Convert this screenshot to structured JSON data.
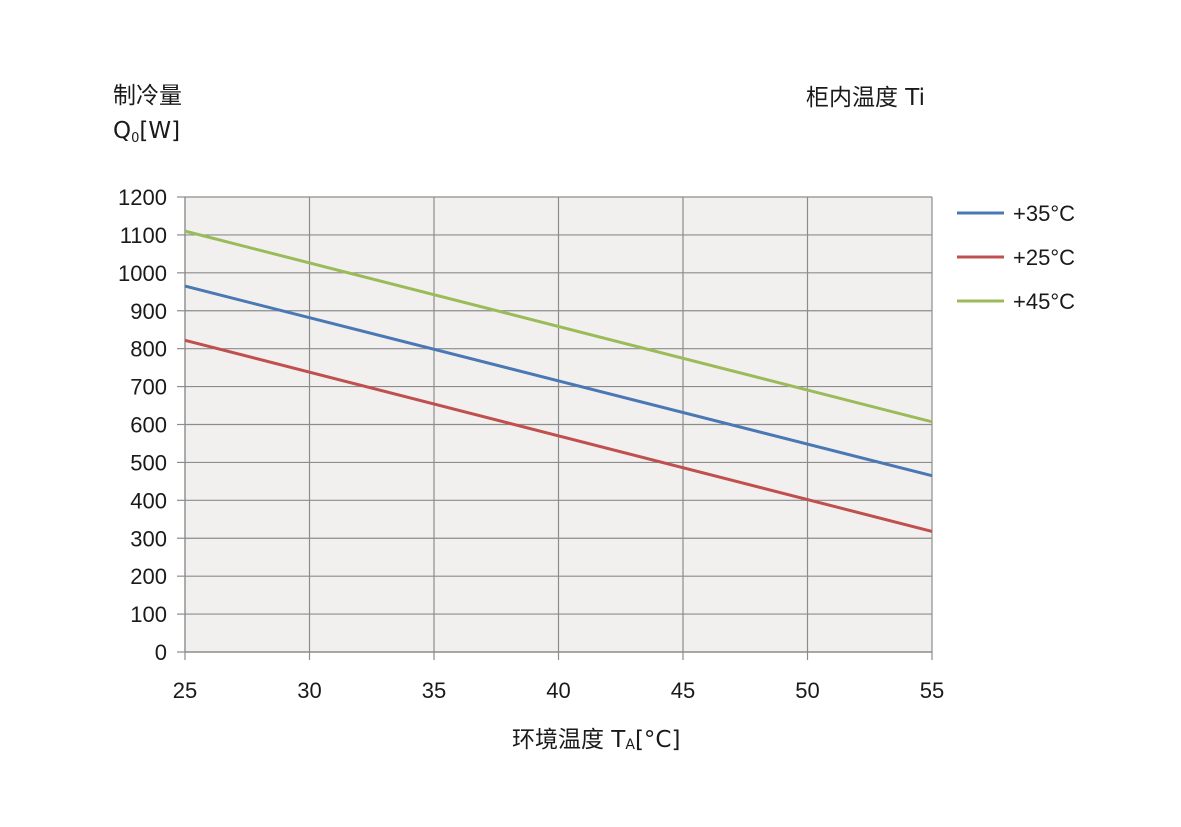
{
  "chart_data": {
    "type": "line",
    "ylabel_line1": "制冷量",
    "ylabel_q": "Q",
    "ylabel_sub": "0",
    "ylabel_unit": "[W]",
    "xlabel_main": "环境温度 T",
    "xlabel_sub": "A",
    "xlabel_unit": "[°C]",
    "legend_title": "柜内温度 Ti",
    "x": [
      25,
      30,
      35,
      40,
      45,
      50,
      55
    ],
    "xlim": [
      25,
      55
    ],
    "ylim": [
      0,
      1200
    ],
    "yticks": [
      0,
      100,
      200,
      300,
      400,
      500,
      600,
      700,
      800,
      900,
      1000,
      1100,
      1200
    ],
    "grid": true,
    "legend_position": "right",
    "series": [
      {
        "name": "+35°C",
        "color": "#4a78b5",
        "x": [
          25,
          55
        ],
        "values": [
          965,
          465
        ]
      },
      {
        "name": "+25°C",
        "color": "#c0504d",
        "x": [
          25,
          55
        ],
        "values": [
          822,
          318
        ]
      },
      {
        "name": "+45°C",
        "color": "#9bbb59",
        "x": [
          25,
          55
        ],
        "values": [
          1110,
          607
        ]
      }
    ],
    "plot_background": "#f1f0ef",
    "grid_color": "#8c8c8c"
  }
}
